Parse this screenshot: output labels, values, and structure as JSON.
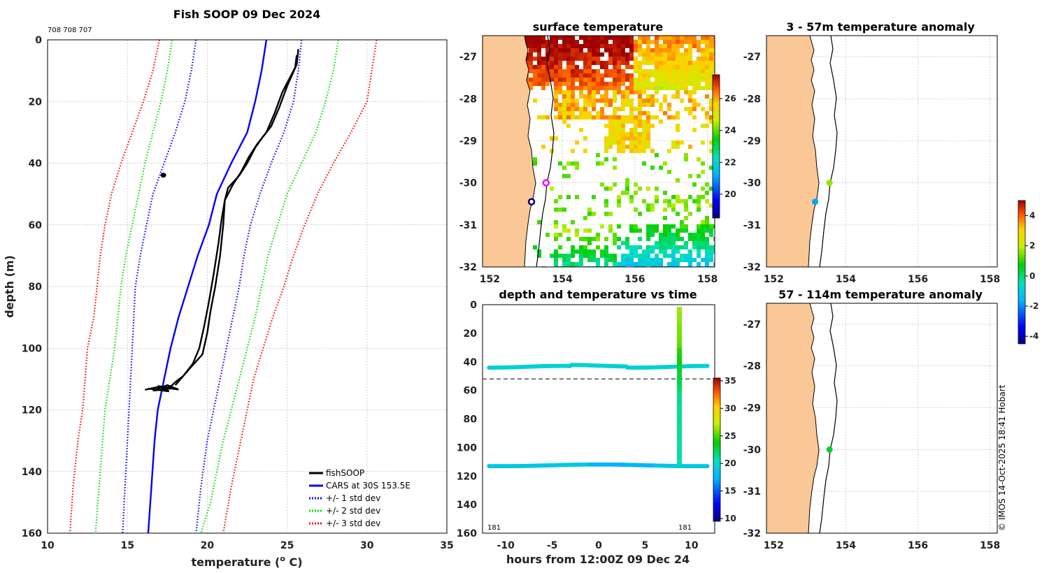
{
  "colors": {
    "land": "#f9c896",
    "coast": "#000000"
  },
  "chart_data": [
    {
      "type": "line",
      "title": "Fish SOOP 09 Dec 2024",
      "id_label": "708 708 707",
      "xlabel": "temperature (",
      "xlabel_sup": "o",
      "xlabel_tail": " C)",
      "ylabel": "depth (m)",
      "xlim": [
        10,
        35
      ],
      "ylim": [
        160,
        0
      ],
      "xticks": [
        "10",
        "15",
        "20",
        "25",
        "30",
        "35"
      ],
      "yticks": [
        "0",
        "20",
        "40",
        "60",
        "80",
        "100",
        "120",
        "140",
        "160"
      ],
      "grid": true,
      "legend_position": "bottom-right",
      "legend": [
        "fishSOOP",
        "CARS at 30S 153.5E",
        "+/- 1 std dev",
        "+/- 2 std dev",
        "+/- 3 std dev"
      ],
      "series": [
        {
          "name": "CARS at 30S 153.5E",
          "color": "#0000ff",
          "style": "solid",
          "temps": [
            23.7,
            23.4,
            23.0,
            22.5,
            21.5,
            20.6,
            20.1,
            19.4,
            18.8,
            18.2,
            17.7,
            17.3,
            16.9,
            16.7,
            16.5,
            16.3
          ],
          "depths": [
            0,
            10,
            20,
            30,
            40,
            50,
            60,
            70,
            80,
            90,
            100,
            110,
            120,
            130,
            145,
            160
          ]
        },
        {
          "name": "+/- 1 std dev (low)",
          "color": "#0000ff",
          "style": "dotted",
          "temps": [
            19.3,
            19.0,
            18.6,
            18.0,
            17.3,
            16.6,
            16.2,
            15.8,
            15.5,
            15.3,
            15.1,
            14.9,
            14.7
          ],
          "depths": [
            0,
            10,
            20,
            30,
            40,
            50,
            60,
            70,
            80,
            100,
            120,
            140,
            160
          ]
        },
        {
          "name": "+/- 1 std dev (high)",
          "color": "#0000ff",
          "style": "dotted",
          "temps": [
            25.9,
            25.7,
            25.4,
            24.8,
            24.0,
            23.3,
            22.7,
            22.3,
            22.0,
            21.6,
            21.2,
            20.8,
            20.4,
            20.0,
            19.6,
            19.3
          ],
          "depths": [
            0,
            10,
            20,
            30,
            40,
            50,
            60,
            70,
            80,
            90,
            100,
            110,
            120,
            130,
            145,
            160
          ]
        },
        {
          "name": "+/- 2 std dev (low)",
          "color": "#00dd00",
          "style": "dotted",
          "temps": [
            17.8,
            17.5,
            17.1,
            16.6,
            16.1,
            15.7,
            15.3,
            14.9,
            14.6,
            14.2,
            13.9,
            13.6,
            13.3,
            13.0
          ],
          "depths": [
            0,
            10,
            20,
            30,
            40,
            50,
            60,
            70,
            80,
            100,
            110,
            120,
            140,
            160
          ]
        },
        {
          "name": "+/- 2 std dev (high)",
          "color": "#00dd00",
          "style": "dotted",
          "temps": [
            28.2,
            27.9,
            27.4,
            26.8,
            25.9,
            25.0,
            24.4,
            23.8,
            23.4,
            23.0,
            22.5,
            22.0,
            21.5,
            21.0,
            20.6,
            20.2,
            19.6
          ],
          "depths": [
            0,
            10,
            20,
            30,
            40,
            50,
            60,
            70,
            80,
            90,
            100,
            110,
            120,
            130,
            140,
            150,
            160
          ]
        },
        {
          "name": "+/- 3 std dev (low)",
          "color": "#ff0000",
          "style": "dotted",
          "temps": [
            17.0,
            16.6,
            16.0,
            15.3,
            14.6,
            14.0,
            13.6,
            13.3,
            12.9,
            12.5,
            12.2,
            11.9,
            11.6,
            11.4
          ],
          "depths": [
            0,
            10,
            20,
            30,
            40,
            50,
            60,
            70,
            90,
            100,
            120,
            130,
            145,
            160
          ]
        },
        {
          "name": "+/- 3 std dev (high)",
          "color": "#ff0000",
          "style": "dotted",
          "temps": [
            30.6,
            30.3,
            30.0,
            29.0,
            27.9,
            26.9,
            26.1,
            25.4,
            24.8,
            24.1,
            23.5,
            22.9,
            22.5,
            22.1,
            21.5,
            21.0
          ],
          "depths": [
            0,
            10,
            20,
            30,
            40,
            50,
            60,
            70,
            80,
            90,
            100,
            110,
            120,
            130,
            145,
            160
          ]
        },
        {
          "name": "fishSOOP",
          "color": "#000000",
          "style": "solid",
          "temps": [
            25.7,
            25.6,
            25.0,
            24.5,
            24.0,
            23.4,
            23.0,
            22.5,
            22.0,
            21.3,
            21.1,
            21.0,
            20.8,
            20.5,
            20.2,
            20.0,
            19.7,
            19.0,
            18.5,
            18.0,
            17.8,
            17.5
          ],
          "depths": [
            3,
            8,
            15,
            22,
            28,
            32,
            35,
            40,
            44,
            48,
            52,
            60,
            70,
            80,
            88,
            95,
            102,
            106,
            109,
            111,
            112,
            113
          ]
        },
        {
          "name": "fishSOOP (2)",
          "color": "#000000",
          "style": "solid",
          "temps": [
            25.6,
            25.5,
            24.7,
            24.2,
            23.7,
            23.1,
            22.6,
            22.1,
            21.6,
            21.1,
            20.9,
            20.7,
            20.4,
            20.1,
            19.8,
            19.5,
            19.1,
            18.5,
            18.0
          ],
          "depths": [
            5,
            9,
            17,
            24,
            30,
            34,
            38,
            43,
            47,
            52,
            58,
            66,
            76,
            85,
            93,
            100,
            105,
            109,
            112
          ]
        }
      ]
    },
    {
      "type": "heatmap",
      "title": "surface temperature",
      "xticks": [
        "152",
        "154",
        "156",
        "158"
      ],
      "yticks": [
        "-27",
        "-28",
        "-29",
        "-30",
        "-31",
        "-32"
      ],
      "xlim": [
        151.8,
        158.2
      ],
      "ylim": [
        -32,
        -26.5
      ],
      "colorbar_ticks": [
        "20",
        "22",
        "24",
        "26"
      ],
      "colorbar_range": [
        18.5,
        27.5
      ],
      "markers": [
        {
          "lon": 153.55,
          "lat": -30.0,
          "color": "#ff00ff",
          "ring": true
        },
        {
          "lon": 153.15,
          "lat": -30.45,
          "color": "#000080",
          "ring": true
        }
      ]
    },
    {
      "type": "scatter",
      "title": "depth and temperature vs time",
      "xlabel": "hours from 12:00Z 09 Dec 24",
      "xlim": [
        -12.5,
        12.5
      ],
      "ylim": [
        160,
        0
      ],
      "xticks": [
        "-10",
        "-5",
        "0",
        "5",
        "10"
      ],
      "yticks": [
        "0",
        "20",
        "40",
        "60",
        "80",
        "100",
        "120",
        "140",
        "160"
      ],
      "annotations": [
        "181",
        "181"
      ],
      "reference_depth": 52,
      "colorbar_ticks": [
        "10",
        "15",
        "20",
        "25",
        "30",
        "35"
      ],
      "colorbar_range": [
        9.5,
        35.5
      ]
    },
    {
      "type": "scatter",
      "title": "3 - 57m temperature anomaly",
      "xticks": [
        "152",
        "154",
        "156",
        "158"
      ],
      "yticks": [
        "-27",
        "-28",
        "-29",
        "-30",
        "-31",
        "-32"
      ],
      "points": [
        {
          "lon": 153.55,
          "lat": -30.0,
          "anomaly": 1.6
        },
        {
          "lon": 153.15,
          "lat": -30.45,
          "anomaly": -1.8
        }
      ]
    },
    {
      "type": "scatter",
      "title": "57 - 114m temperature anomaly",
      "xticks": [
        "152",
        "154",
        "156",
        "158"
      ],
      "yticks": [
        "-27",
        "-28",
        "-29",
        "-30",
        "-31",
        "-32"
      ],
      "points": [
        {
          "lon": 153.55,
          "lat": -30.0,
          "anomaly": 0.4
        }
      ],
      "colorbar_ticks": [
        "4",
        "2",
        "0",
        "-2",
        "-4"
      ],
      "colorbar_range": [
        -4.5,
        5.0
      ]
    }
  ],
  "footer": {
    "credit": "© IMOS 14-Oct-2025 18:41 Hobart"
  }
}
